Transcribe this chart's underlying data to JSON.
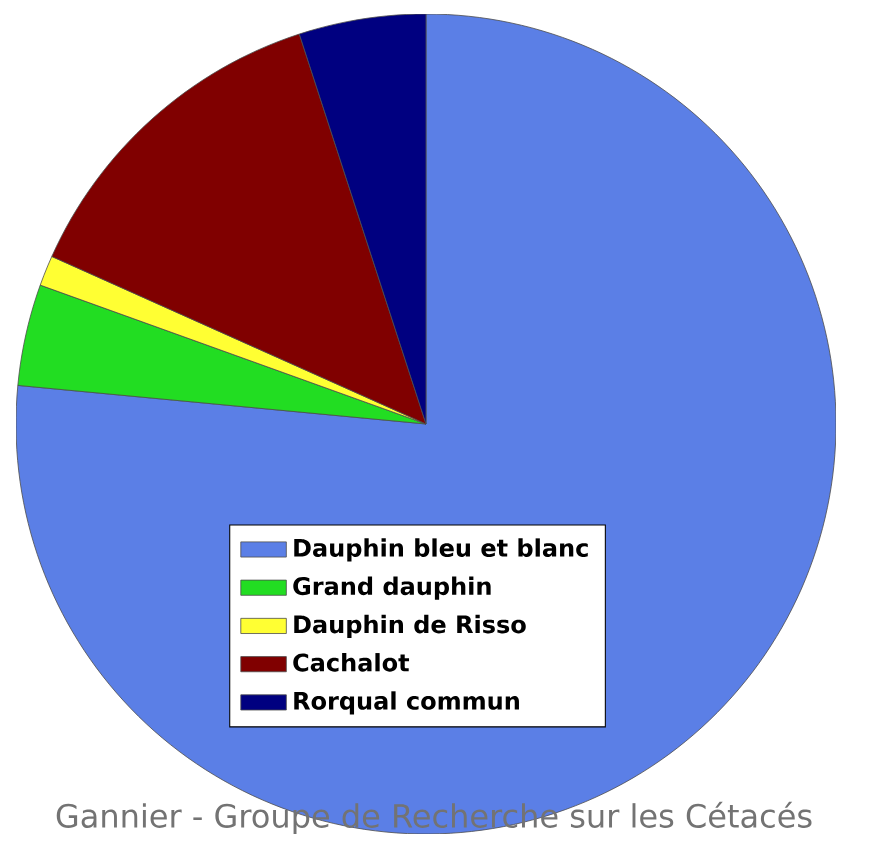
{
  "chart_data": {
    "type": "pie",
    "categories": [
      "Dauphin bleu et blanc",
      "Grand dauphin",
      "Dauphin de Risso",
      "Cachalot",
      "Rorqual commun"
    ],
    "values": [
      76.5,
      4,
      1.2,
      13.3,
      5
    ],
    "colors": [
      "#5b7fe6",
      "#22dd22",
      "#ffff33",
      "#800000",
      "#000080"
    ],
    "legend": "bottom left",
    "annotations": [
      "Gannier - Groupe de Recherche sur les Cétacés"
    ]
  }
}
